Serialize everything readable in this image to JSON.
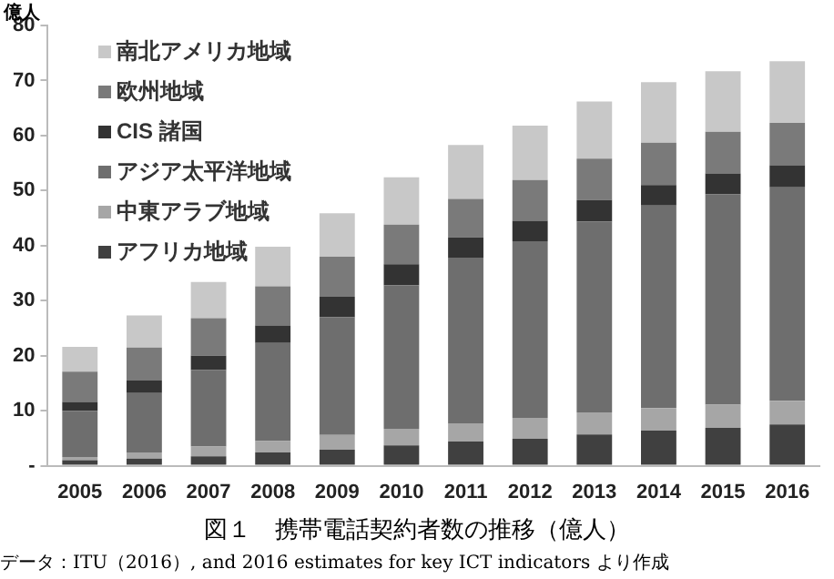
{
  "chart_data": {
    "type": "bar",
    "title": "図１　携帯電話契約者数の推移（億人）",
    "ylabel": "億人",
    "annotations": [
      "データ：ITU（2016）, and 2016 estimates for key ICT indicators より作成"
    ],
    "categories": [
      "2005",
      "2006",
      "2007",
      "2008",
      "2009",
      "2010",
      "2011",
      "2012",
      "2013",
      "2014",
      "2015",
      "2016"
    ],
    "stacked": true,
    "legend": "top left",
    "grid": false,
    "ylim": [
      0,
      80
    ],
    "yticks": [
      {
        "value": 0,
        "label": "-"
      },
      10,
      20,
      30,
      40,
      50,
      60,
      70,
      80
    ],
    "series": [
      {
        "name": "アフリカ地域",
        "color": "#404040",
        "values": [
          1.0,
          1.3,
          1.7,
          2.4,
          2.9,
          3.7,
          4.4,
          4.9,
          5.7,
          6.4,
          6.9,
          7.5
        ]
      },
      {
        "name": "中東アラブ地域",
        "color": "#a6a6a6",
        "values": [
          0.6,
          1.1,
          1.8,
          2.1,
          2.7,
          3.0,
          3.3,
          3.8,
          4.0,
          4.1,
          4.2,
          4.3
        ]
      },
      {
        "name": "アジア太平洋地域",
        "color": "#6e6e6e",
        "values": [
          8.4,
          10.8,
          13.9,
          17.8,
          21.4,
          26.1,
          30.1,
          32.1,
          34.7,
          36.8,
          38.2,
          38.8
        ]
      },
      {
        "name": "CIS 諸国",
        "color": "#333333",
        "values": [
          1.6,
          2.3,
          2.6,
          3.2,
          3.7,
          3.8,
          3.7,
          3.7,
          3.9,
          3.7,
          3.8,
          4.0
        ]
      },
      {
        "name": "欧州地域",
        "color": "#7a7a7a",
        "values": [
          5.5,
          6.0,
          6.8,
          7.1,
          7.3,
          7.2,
          7.0,
          7.4,
          7.5,
          7.7,
          7.6,
          7.7
        ]
      },
      {
        "name": "南北アメリカ地域",
        "color": "#c8c8c8",
        "values": [
          4.5,
          5.8,
          6.6,
          7.2,
          7.9,
          8.6,
          9.8,
          9.9,
          10.4,
          11.0,
          11.0,
          11.2
        ]
      }
    ]
  }
}
